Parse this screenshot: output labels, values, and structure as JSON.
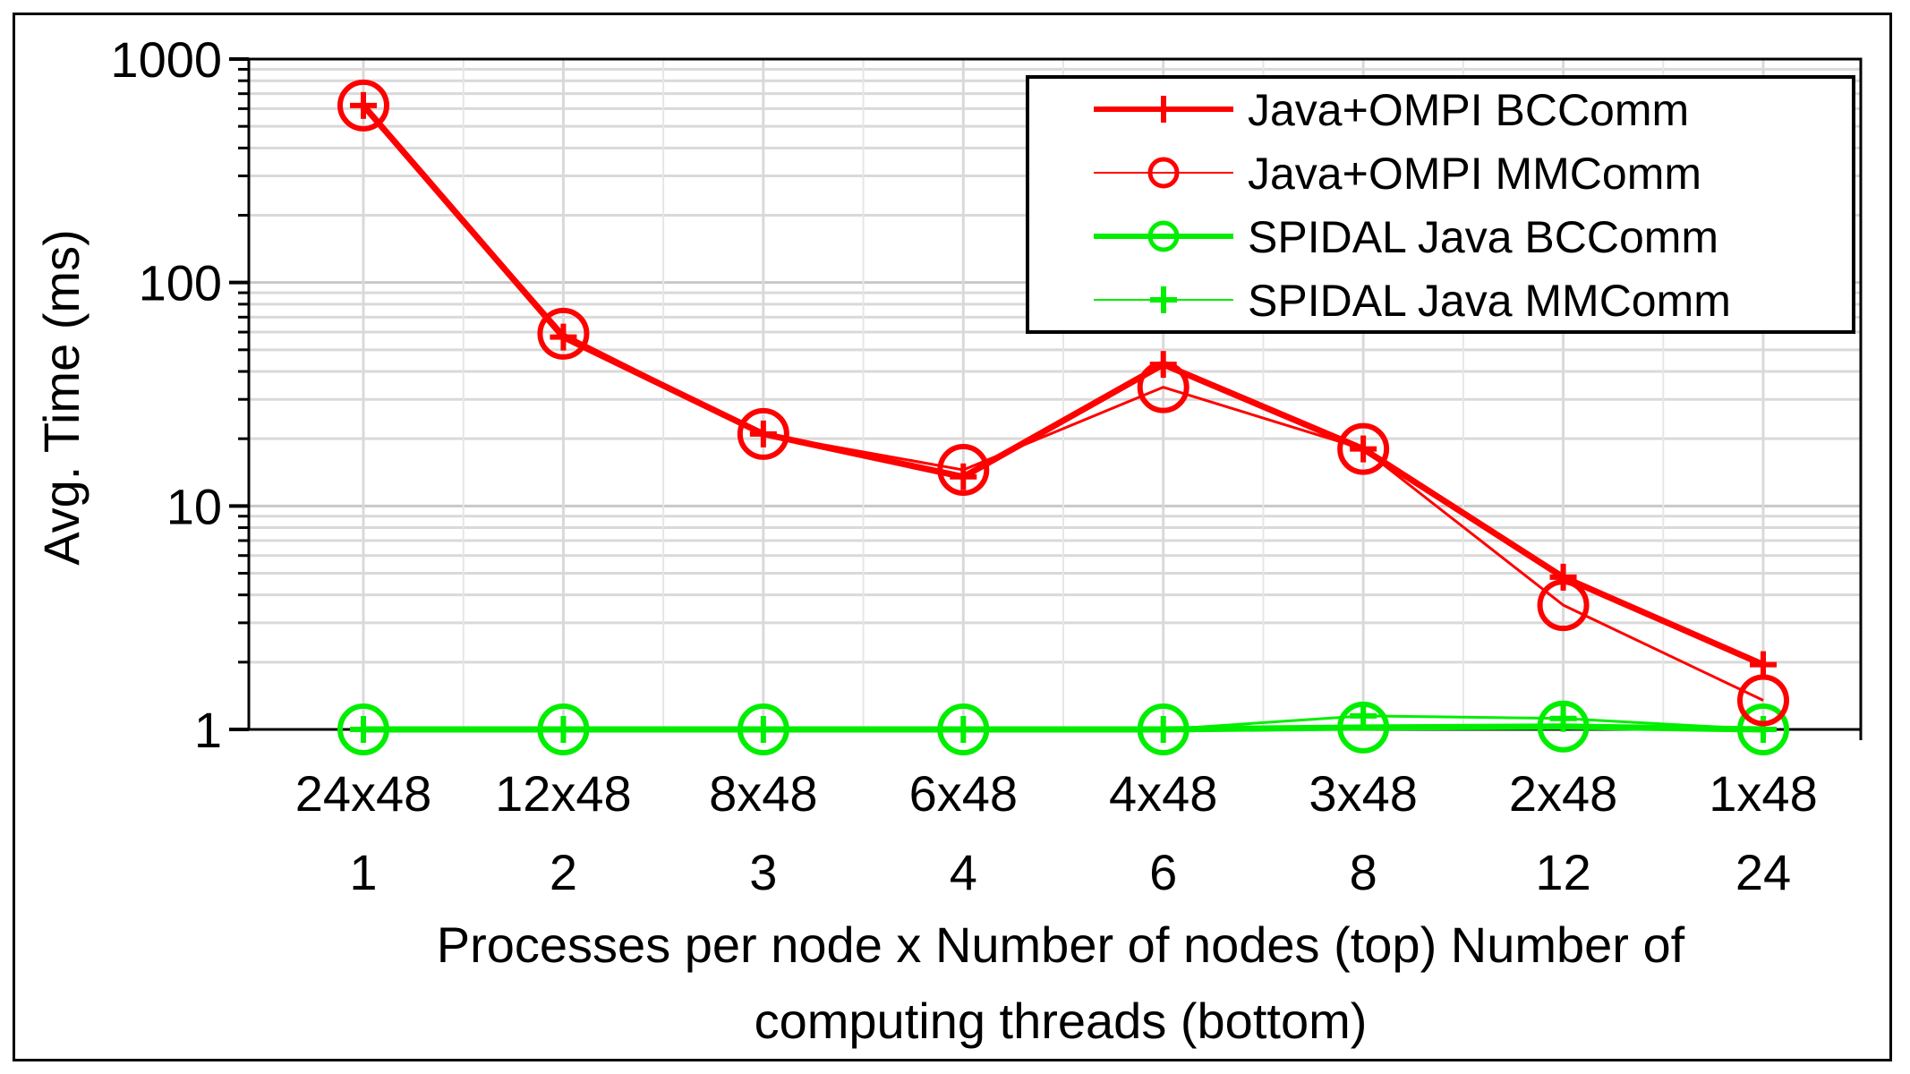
{
  "chart_data": {
    "type": "line",
    "y_scale": "log",
    "ylim": [
      1,
      1000
    ],
    "y_ticks": [
      "1",
      "10",
      "100",
      "1000"
    ],
    "ylabel": "Avg. Time (ms)",
    "xlabel": "Processes per node x Number of nodes (top) Number of computing threads (bottom)",
    "xlabel_lines": [
      "Processes per node x Number of nodes (top) Number of",
      "computing threads (bottom)"
    ],
    "categories_top": [
      "24x48",
      "12x48",
      "8x48",
      "6x48",
      "4x48",
      "3x48",
      "2x48",
      "1x48"
    ],
    "categories_bottom": [
      "1",
      "2",
      "3",
      "4",
      "6",
      "8",
      "12",
      "24"
    ],
    "grid": true,
    "legend_position": "top-right",
    "series": [
      {
        "name": "Java+OMPI BCComm",
        "color": "#ff0000",
        "marker": "plus",
        "width": "thick",
        "values": [
          620,
          57,
          21,
          13.5,
          43,
          18,
          4.8,
          1.95
        ]
      },
      {
        "name": "Java+OMPI MMComm",
        "color": "#ff0000",
        "marker": "circle",
        "width": "thin",
        "values": [
          620,
          59,
          21,
          14.5,
          34,
          18,
          3.6,
          1.35
        ]
      },
      {
        "name": "SPIDAL Java BCComm",
        "color": "#00ee00",
        "marker": "circle",
        "width": "thick",
        "values": [
          1,
          1,
          1,
          1,
          1,
          1.02,
          1.03,
          1.0
        ]
      },
      {
        "name": "SPIDAL Java MMComm",
        "color": "#00ee00",
        "marker": "plus",
        "width": "thin",
        "values": [
          1,
          1,
          1,
          1,
          1,
          1.15,
          1.12,
          1.0
        ]
      }
    ]
  }
}
